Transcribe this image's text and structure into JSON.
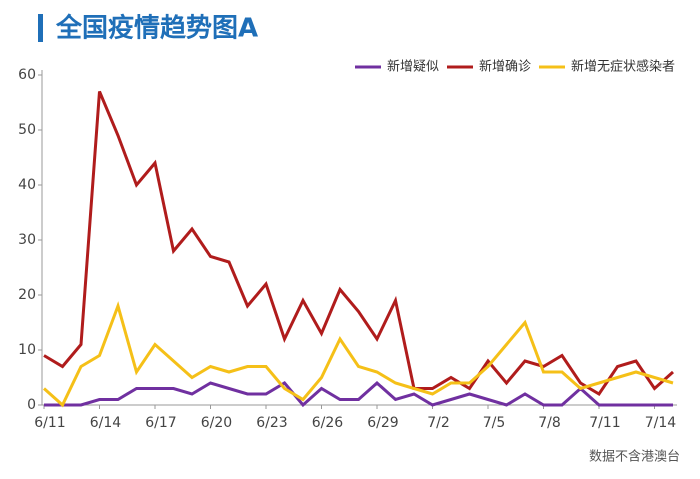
{
  "chart_data": {
    "type": "line",
    "title": "全国疫情趋势图A",
    "note": "数据不含港澳台",
    "categories": [
      "6/11",
      null,
      null,
      "6/14",
      null,
      null,
      "6/17",
      null,
      null,
      "6/20",
      null,
      null,
      "6/23",
      null,
      null,
      "6/26",
      null,
      null,
      "6/29",
      null,
      null,
      "7/2",
      null,
      null,
      "7/5",
      null,
      null,
      "7/8",
      null,
      null,
      "7/11",
      null,
      null,
      "7/14",
      null
    ],
    "series": [
      {
        "name": "新增疑似",
        "color": "#7030a0",
        "values": [
          0,
          0,
          0,
          1,
          1,
          3,
          3,
          3,
          2,
          4,
          3,
          2,
          2,
          4,
          0,
          3,
          1,
          1,
          4,
          1,
          2,
          0,
          1,
          2,
          1,
          0,
          2,
          0,
          0,
          3,
          0,
          0,
          0,
          0,
          0
        ]
      },
      {
        "name": "新增确诊",
        "color": "#b01c1c",
        "values": [
          9,
          7,
          11,
          57,
          49,
          40,
          44,
          28,
          32,
          27,
          26,
          18,
          22,
          12,
          19,
          13,
          21,
          17,
          12,
          19,
          3,
          3,
          5,
          3,
          8,
          4,
          8,
          7,
          9,
          4,
          2,
          7,
          8,
          3,
          6
        ]
      },
      {
        "name": "新增无症状感染者",
        "color": "#f5c018",
        "values": [
          3,
          0,
          7,
          9,
          18,
          6,
          11,
          8,
          5,
          7,
          6,
          7,
          7,
          3,
          1,
          5,
          12,
          7,
          6,
          4,
          3,
          2,
          4,
          4,
          7,
          11,
          15,
          6,
          6,
          3,
          4,
          5,
          6,
          5,
          4
        ]
      }
    ],
    "ylim": [
      0,
      60
    ],
    "yticks": [
      0,
      10,
      20,
      30,
      40,
      50,
      60
    ],
    "legend": "top-right"
  }
}
